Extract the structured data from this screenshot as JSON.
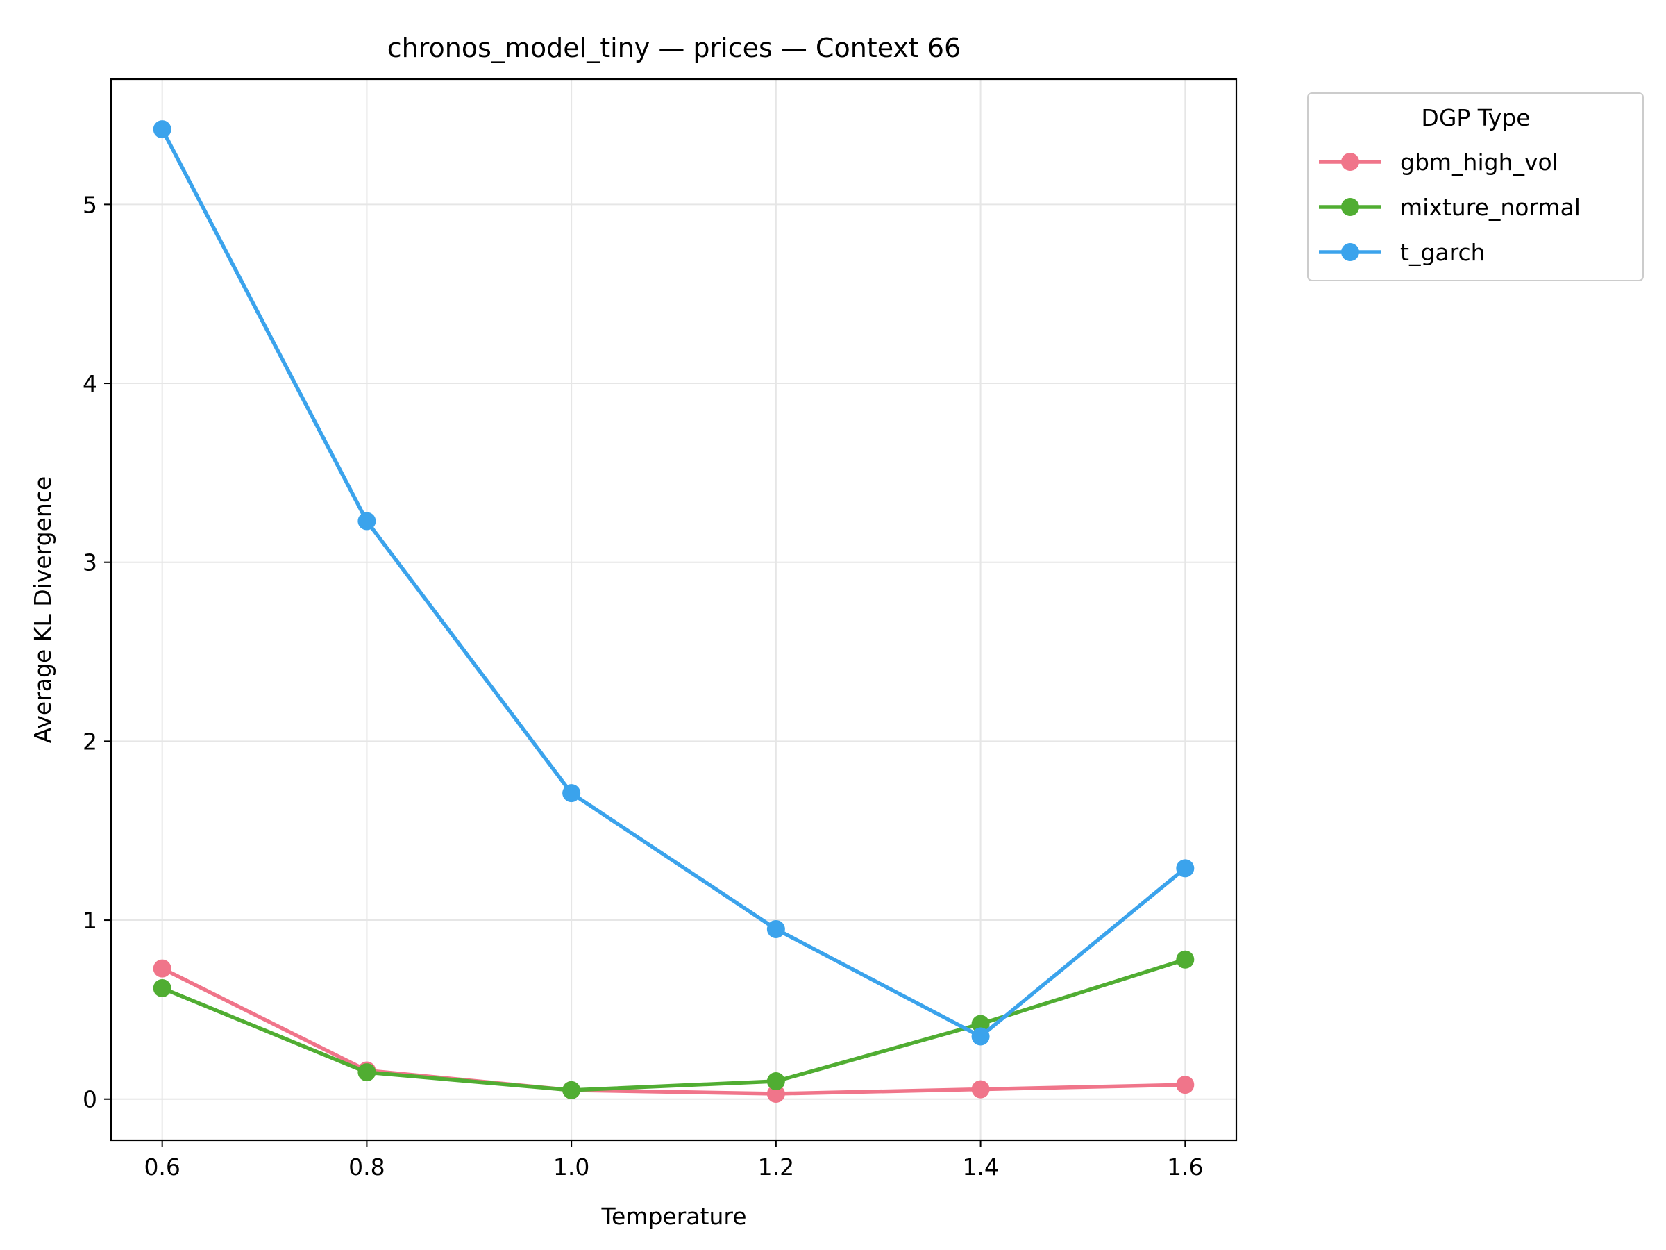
{
  "chart_data": {
    "type": "line",
    "title": "chronos_model_tiny — prices — Context 66",
    "xlabel": "Temperature",
    "ylabel": "Average KL Divergence",
    "x": [
      0.6,
      0.8,
      1.0,
      1.2,
      1.4,
      1.6
    ],
    "x_tick_labels": [
      "0.6",
      "0.8",
      "1.0",
      "1.2",
      "1.4",
      "1.6"
    ],
    "xlim": [
      0.55,
      1.65
    ],
    "ylim": [
      -0.23,
      5.7
    ],
    "y_ticks": [
      0,
      1,
      2,
      3,
      4,
      5
    ],
    "y_tick_labels": [
      "0",
      "1",
      "2",
      "3",
      "4",
      "5"
    ],
    "grid": true,
    "legend": {
      "title": "DGP Type",
      "placement": "outside-top-right"
    },
    "series": [
      {
        "name": "gbm_high_vol",
        "color": "#f0758a",
        "values": [
          0.73,
          0.16,
          0.05,
          0.03,
          0.055,
          0.08
        ]
      },
      {
        "name": "mixture_normal",
        "color": "#50ad32",
        "values": [
          0.62,
          0.15,
          0.05,
          0.1,
          0.42,
          0.78
        ]
      },
      {
        "name": "t_garch",
        "color": "#3ba3ec",
        "values": [
          5.42,
          3.23,
          1.71,
          0.95,
          0.35,
          1.29
        ]
      }
    ]
  }
}
